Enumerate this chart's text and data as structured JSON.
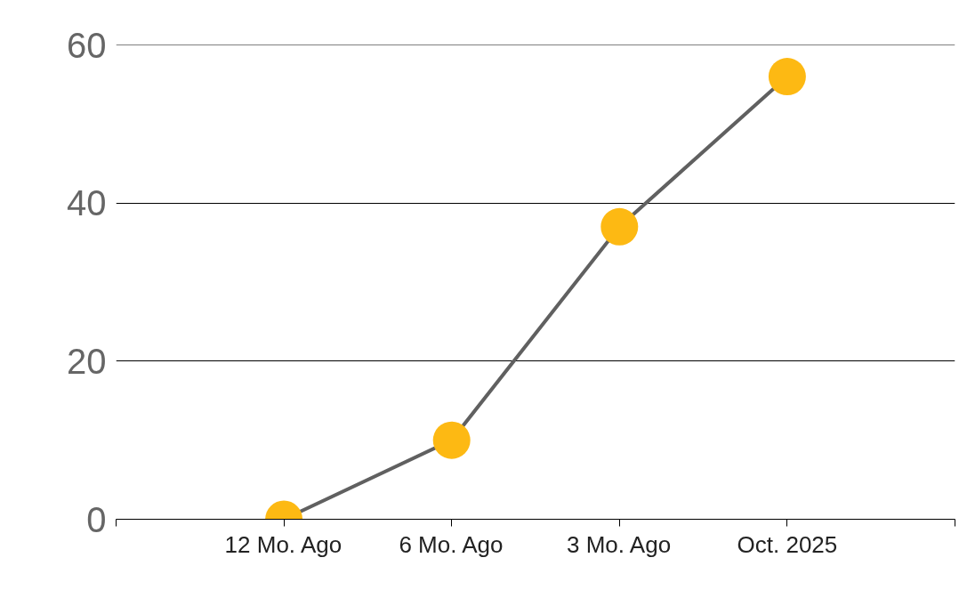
{
  "chart_data": {
    "type": "line",
    "categories": [
      "12 Mo. Ago",
      "6 Mo. Ago",
      "3 Mo. Ago",
      "Oct. 2025"
    ],
    "series": [
      {
        "color": "#606060",
        "colors": [
          "#fdb913",
          "#fdb913",
          "#fdb913",
          "#fdb913"
        ],
        "values": [
          0,
          10,
          37,
          56
        ]
      }
    ],
    "ylim": [
      0,
      60
    ],
    "yticks": [
      0,
      20,
      40,
      60
    ],
    "grid": "y",
    "marker": "circle",
    "line_style": "solid"
  }
}
